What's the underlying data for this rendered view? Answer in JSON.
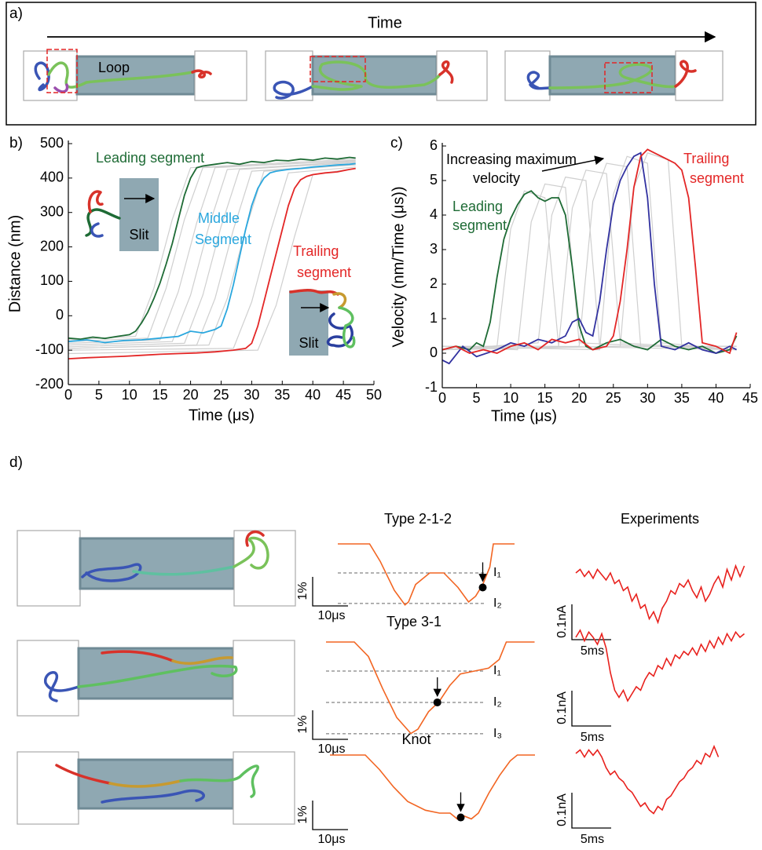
{
  "panel_a": {
    "label": "a)",
    "time_label": "Time",
    "loop_label": "Loop"
  },
  "panel_d": {
    "label": "d)"
  },
  "chart_data": [
    {
      "type": "line",
      "label": "b)",
      "xlabel": "Time (μs)",
      "ylabel": "Distance (nm)",
      "xlim": [
        0,
        50
      ],
      "ylim": [
        -200,
        500
      ],
      "xticks": [
        0,
        5,
        10,
        15,
        20,
        25,
        30,
        35,
        40,
        45,
        50
      ],
      "yticks": [
        -200,
        -100,
        0,
        100,
        200,
        300,
        400,
        500
      ],
      "annotations": [
        {
          "text": "Leading segment",
          "color": "#1e6b35"
        },
        {
          "text": "Middle",
          "color": "#2aa7de"
        },
        {
          "text": "Segment",
          "color": "#2aa7de"
        },
        {
          "text": "Trailing",
          "color": "#e32626"
        },
        {
          "text": "segment",
          "color": "#e32626"
        },
        {
          "text": "Slit",
          "color": "#000000"
        },
        {
          "text": "Slit",
          "color": "#000000"
        }
      ],
      "series": [
        {
          "color": "#cfcfcf",
          "x": [
            0,
            11,
            14,
            17,
            20,
            47
          ],
          "values": [
            -70,
            -60,
            80,
            280,
            430,
            455
          ]
        },
        {
          "color": "#cfcfcf",
          "x": [
            0,
            13,
            16,
            19,
            22,
            47
          ],
          "values": [
            -75,
            -65,
            80,
            280,
            430,
            450
          ]
        },
        {
          "color": "#cfcfcf",
          "x": [
            0,
            15,
            18,
            21,
            24,
            47
          ],
          "values": [
            -80,
            -70,
            70,
            270,
            430,
            452
          ]
        },
        {
          "color": "#cfcfcf",
          "x": [
            0,
            17,
            20,
            23,
            26,
            47
          ],
          "values": [
            -85,
            -75,
            60,
            260,
            425,
            448
          ]
        },
        {
          "color": "#cfcfcf",
          "x": [
            0,
            19,
            22,
            25,
            28,
            47
          ],
          "values": [
            -90,
            -80,
            60,
            260,
            425,
            445
          ]
        },
        {
          "color": "#cfcfcf",
          "x": [
            0,
            21,
            24,
            27,
            30,
            47
          ],
          "values": [
            -95,
            -85,
            50,
            250,
            420,
            440
          ]
        },
        {
          "color": "#cfcfcf",
          "x": [
            0,
            23,
            26,
            29,
            32,
            47
          ],
          "values": [
            -95,
            -85,
            50,
            250,
            420,
            438
          ]
        },
        {
          "color": "#cfcfcf",
          "x": [
            0,
            27,
            30,
            33,
            36,
            47
          ],
          "values": [
            -100,
            -95,
            40,
            240,
            415,
            432
          ]
        },
        {
          "color": "#cfcfcf",
          "x": [
            0,
            31,
            34,
            37,
            40,
            47
          ],
          "values": [
            -110,
            -100,
            30,
            230,
            410,
            428
          ]
        },
        {
          "color": "#1e6b35",
          "x": [
            0,
            2,
            4,
            6,
            8,
            10,
            11,
            12,
            13,
            14,
            15,
            16,
            17,
            18,
            19,
            20,
            21,
            22,
            24,
            26,
            28,
            30,
            32,
            34,
            36,
            38,
            40,
            42,
            44,
            46,
            47
          ],
          "values": [
            -65,
            -68,
            -62,
            -66,
            -60,
            -55,
            -45,
            -20,
            10,
            50,
            95,
            150,
            210,
            280,
            350,
            400,
            430,
            435,
            440,
            445,
            440,
            448,
            445,
            452,
            450,
            455,
            452,
            458,
            455,
            460,
            458
          ]
        },
        {
          "color": "#2aa7de",
          "x": [
            0,
            3,
            6,
            9,
            12,
            15,
            18,
            20,
            22,
            24,
            25,
            26,
            27,
            28,
            29,
            30,
            31,
            32,
            33,
            34,
            36,
            38,
            40,
            42,
            44,
            46,
            47
          ],
          "values": [
            -75,
            -70,
            -78,
            -72,
            -70,
            -65,
            -60,
            -45,
            -50,
            -40,
            -30,
            20,
            90,
            170,
            250,
            320,
            370,
            400,
            415,
            420,
            425,
            428,
            432,
            435,
            438,
            440,
            442
          ]
        },
        {
          "color": "#e32626",
          "x": [
            0,
            3,
            6,
            9,
            12,
            15,
            18,
            21,
            24,
            27,
            29,
            30,
            31,
            32,
            33,
            34,
            35,
            36,
            37,
            38,
            39,
            40,
            42,
            44,
            46,
            47
          ],
          "values": [
            -125,
            -122,
            -120,
            -118,
            -115,
            -112,
            -110,
            -108,
            -105,
            -100,
            -95,
            -80,
            -30,
            40,
            110,
            180,
            250,
            320,
            370,
            395,
            405,
            410,
            415,
            418,
            425,
            428
          ]
        }
      ]
    },
    {
      "type": "line",
      "label": "c)",
      "xlabel": "Time (μs)",
      "ylabel": "Velocity (nm/Time (μs))",
      "xlim": [
        0,
        45
      ],
      "ylim": [
        -1,
        6
      ],
      "xticks": [
        0,
        5,
        10,
        15,
        20,
        25,
        30,
        35,
        40,
        45
      ],
      "yticks": [
        -1,
        0,
        1,
        2,
        3,
        4,
        5,
        6
      ],
      "annotations": [
        {
          "text": "Increasing maximum",
          "color": "#000000"
        },
        {
          "text": "velocity",
          "color": "#000000"
        },
        {
          "text": "Leading",
          "color": "#1e6b35"
        },
        {
          "text": "segment",
          "color": "#1e6b35"
        },
        {
          "text": "Trailing",
          "color": "#e32626"
        },
        {
          "text": "segment",
          "color": "#e32626"
        }
      ],
      "series": [
        {
          "color": "#cfcfcf",
          "x": [
            0,
            8,
            10,
            12,
            15,
            17,
            43
          ],
          "values": [
            0.1,
            0.2,
            3.6,
            4.7,
            4.5,
            0.2,
            0.1
          ]
        },
        {
          "color": "#cfcfcf",
          "x": [
            0,
            11,
            13,
            15,
            18,
            20,
            43
          ],
          "values": [
            0.2,
            0.1,
            3.8,
            4.9,
            4.8,
            0.3,
            0.1
          ]
        },
        {
          "color": "#cfcfcf",
          "x": [
            0,
            14,
            16,
            18,
            21,
            23,
            43
          ],
          "values": [
            0.1,
            0.3,
            4.0,
            5.1,
            5.0,
            0.2,
            0.2
          ]
        },
        {
          "color": "#cfcfcf",
          "x": [
            0,
            17,
            19,
            21,
            24,
            26,
            43
          ],
          "values": [
            0.2,
            0.2,
            4.2,
            5.3,
            5.2,
            0.3,
            0.1
          ]
        },
        {
          "color": "#cfcfcf",
          "x": [
            0,
            20,
            22,
            24,
            27,
            29,
            43
          ],
          "values": [
            0.1,
            0.2,
            4.4,
            5.5,
            5.4,
            0.2,
            0.2
          ]
        },
        {
          "color": "#cfcfcf",
          "x": [
            0,
            23,
            25,
            27,
            30,
            32,
            43
          ],
          "values": [
            0.2,
            0.1,
            4.6,
            5.7,
            5.5,
            0.3,
            0.1
          ]
        },
        {
          "color": "#cfcfcf",
          "x": [
            0,
            26,
            28,
            30,
            33,
            35,
            43
          ],
          "values": [
            0.1,
            0.2,
            4.8,
            5.8,
            5.6,
            0.2,
            0.2
          ]
        },
        {
          "color": "#1e6b35",
          "x": [
            0,
            2,
            4,
            5,
            6,
            7,
            8,
            9,
            10,
            11,
            12,
            13,
            14,
            15,
            16,
            17,
            18,
            19,
            20,
            21,
            22,
            24,
            26,
            28,
            30,
            32,
            34,
            36,
            38,
            40,
            42,
            43
          ],
          "values": [
            0.1,
            0.2,
            0.1,
            0.3,
            0.2,
            0.9,
            2.2,
            3.3,
            3.9,
            4.3,
            4.6,
            4.7,
            4.5,
            4.4,
            4.5,
            4.5,
            4.0,
            2.5,
            0.8,
            0.2,
            0.1,
            0.3,
            0.4,
            0.2,
            0.1,
            0.4,
            0.2,
            0.1,
            0.2,
            0.0,
            0.1,
            0.5
          ]
        },
        {
          "color": "#3232a0",
          "x": [
            0,
            1,
            3,
            5,
            8,
            10,
            12,
            14,
            16,
            18,
            19,
            20,
            21,
            22,
            23,
            24,
            25,
            26,
            27,
            28,
            29,
            30,
            31,
            32,
            34,
            36,
            38,
            40,
            42,
            43
          ],
          "values": [
            -0.2,
            -0.3,
            0.2,
            -0.1,
            0.1,
            0.3,
            0.2,
            0.4,
            0.3,
            0.5,
            0.9,
            1.0,
            0.6,
            0.5,
            1.5,
            3.0,
            4.3,
            5.0,
            5.4,
            5.7,
            5.8,
            4.5,
            2.0,
            0.2,
            0.1,
            0.3,
            0.1,
            0.0,
            0.2,
            0.1
          ]
        },
        {
          "color": "#e32626",
          "x": [
            0,
            2,
            4,
            6,
            8,
            10,
            12,
            14,
            16,
            18,
            20,
            22,
            24,
            25,
            26,
            27,
            28,
            29,
            30,
            31,
            32,
            33,
            34,
            35,
            36,
            37,
            38,
            40,
            42,
            43
          ],
          "values": [
            0.1,
            0.2,
            0.0,
            0.1,
            0.0,
            0.2,
            0.3,
            0.1,
            0.4,
            0.3,
            0.4,
            0.1,
            0.2,
            0.5,
            1.5,
            3.0,
            4.8,
            5.7,
            5.9,
            5.8,
            5.7,
            5.6,
            5.5,
            5.3,
            4.5,
            2.5,
            0.3,
            0.2,
            0.0,
            0.6
          ]
        }
      ]
    },
    {
      "type": "trace",
      "title": "Type 2-1-2",
      "color": "#f26522",
      "x": [
        0,
        9,
        12,
        16,
        19,
        20,
        22,
        26,
        30,
        34,
        37,
        39,
        41,
        43,
        44,
        50
      ],
      "values": [
        0,
        0,
        -0.6,
        -1.6,
        -2.1,
        -2.0,
        -1.4,
        -1.0,
        -1.0,
        -1.5,
        -2.0,
        -1.8,
        -1.4,
        -0.8,
        0,
        0
      ],
      "levels": [
        -1.0,
        -2.05
      ],
      "level_labels": [
        "I₁",
        "I₂"
      ],
      "marker_x": 41,
      "marker_value": -1.5,
      "scale_y_label": "1%",
      "scale_x_label": "10μs"
    },
    {
      "type": "trace",
      "title": "Type 3-1",
      "color": "#f26522",
      "x": [
        0,
        8,
        12,
        16,
        20,
        24,
        26,
        29,
        32,
        35,
        38,
        42,
        46,
        49,
        51,
        59
      ],
      "values": [
        0,
        0,
        -0.5,
        -1.6,
        -2.6,
        -3.15,
        -3.0,
        -2.4,
        -2.05,
        -1.5,
        -1.1,
        -1.0,
        -0.9,
        -0.6,
        0,
        0
      ],
      "levels": [
        -1.0,
        -2.08,
        -3.16
      ],
      "level_labels": [
        "I₁",
        "I₂",
        "I₃"
      ],
      "marker_x": 31.5,
      "marker_value": -2.08,
      "scale_y_label": "1%",
      "scale_x_label": "10μs"
    },
    {
      "type": "trace",
      "title": "Knot",
      "color": "#f26522",
      "x": [
        0,
        10,
        14,
        18,
        22,
        27,
        31,
        34,
        36,
        38,
        40,
        42,
        45,
        48,
        51,
        53,
        58
      ],
      "values": [
        0,
        0,
        -0.5,
        -1.1,
        -1.6,
        -1.9,
        -2.0,
        -2.0,
        -2.2,
        -2.1,
        -2.2,
        -2.0,
        -1.3,
        -0.7,
        -0.2,
        0,
        0
      ],
      "marker_x": 37,
      "marker_value": -2.15,
      "scale_y_label": "1%",
      "scale_x_label": "10μs"
    },
    {
      "type": "experiment",
      "title": "Experiments",
      "color": "#e8201c",
      "x": [
        0,
        0.5,
        1,
        1.5,
        2,
        2.5,
        3,
        3.5,
        4,
        4.5,
        5,
        5.5,
        6,
        6.5,
        7,
        7.5,
        8,
        8.5,
        9,
        9.5,
        10,
        10.5,
        11,
        11.5,
        12,
        12.5,
        13,
        13.5,
        14,
        14.5,
        15,
        15.5,
        16,
        16.5,
        17,
        17.5,
        18,
        18.5,
        19,
        19.5
      ],
      "values": [
        0,
        0.01,
        -0.01,
        0.005,
        -0.015,
        0.01,
        -0.005,
        -0.02,
        0,
        -0.03,
        -0.02,
        -0.05,
        -0.04,
        -0.08,
        -0.06,
        -0.1,
        -0.09,
        -0.13,
        -0.11,
        -0.14,
        -0.1,
        -0.08,
        -0.05,
        -0.06,
        -0.03,
        -0.04,
        -0.02,
        -0.05,
        -0.07,
        -0.04,
        -0.08,
        -0.06,
        -0.03,
        -0.01,
        -0.04,
        0.01,
        -0.02,
        0.02,
        -0.01,
        0.02
      ],
      "scale_y_label": "0.1nA",
      "scale_x_label": "5ms"
    },
    {
      "type": "experiment",
      "color": "#e8201c",
      "x": [
        0,
        0.5,
        1,
        1.5,
        2,
        2.5,
        3,
        3.5,
        4,
        4.5,
        5,
        5.5,
        6,
        6.5,
        7,
        7.5,
        8,
        8.5,
        9,
        9.5,
        10,
        10.5,
        11,
        11.5,
        12,
        12.5,
        13,
        13.5,
        14,
        14.5,
        15,
        15.5,
        16,
        16.5,
        17,
        17.5,
        18,
        18.5,
        19,
        19.5
      ],
      "values": [
        0,
        0.02,
        -0.01,
        0.015,
        0,
        -0.02,
        0.01,
        -0.03,
        -0.1,
        -0.15,
        -0.17,
        -0.15,
        -0.18,
        -0.16,
        -0.14,
        -0.15,
        -0.12,
        -0.1,
        -0.11,
        -0.08,
        -0.09,
        -0.06,
        -0.08,
        -0.05,
        -0.06,
        -0.04,
        -0.05,
        -0.03,
        -0.05,
        -0.02,
        -0.04,
        -0.01,
        -0.03,
        0,
        -0.02,
        0.01,
        -0.01,
        0.015,
        0,
        0.01
      ],
      "scale_y_label": "0.1nA",
      "scale_x_label": "5ms"
    },
    {
      "type": "experiment",
      "color": "#e8201c",
      "x": [
        0,
        0.5,
        1,
        1.5,
        2,
        2.5,
        3,
        3.5,
        4,
        4.5,
        5,
        5.5,
        6,
        6.5,
        7,
        7.5,
        8,
        8.5,
        9,
        9.5,
        10,
        10.5,
        11,
        11.5,
        12,
        12.5,
        13,
        13.5,
        14,
        14.5,
        15,
        15.5,
        16,
        16.5
      ],
      "values": [
        0,
        0.01,
        -0.01,
        0.01,
        -0.005,
        0.01,
        -0.01,
        -0.04,
        -0.06,
        -0.05,
        -0.07,
        -0.08,
        -0.1,
        -0.11,
        -0.13,
        -0.15,
        -0.14,
        -0.16,
        -0.17,
        -0.15,
        -0.16,
        -0.13,
        -0.12,
        -0.1,
        -0.08,
        -0.07,
        -0.05,
        -0.04,
        -0.02,
        -0.03,
        0,
        -0.01,
        0.02,
        -0.01
      ],
      "scale_y_label": "0.1nA",
      "scale_x_label": "5ms"
    }
  ]
}
